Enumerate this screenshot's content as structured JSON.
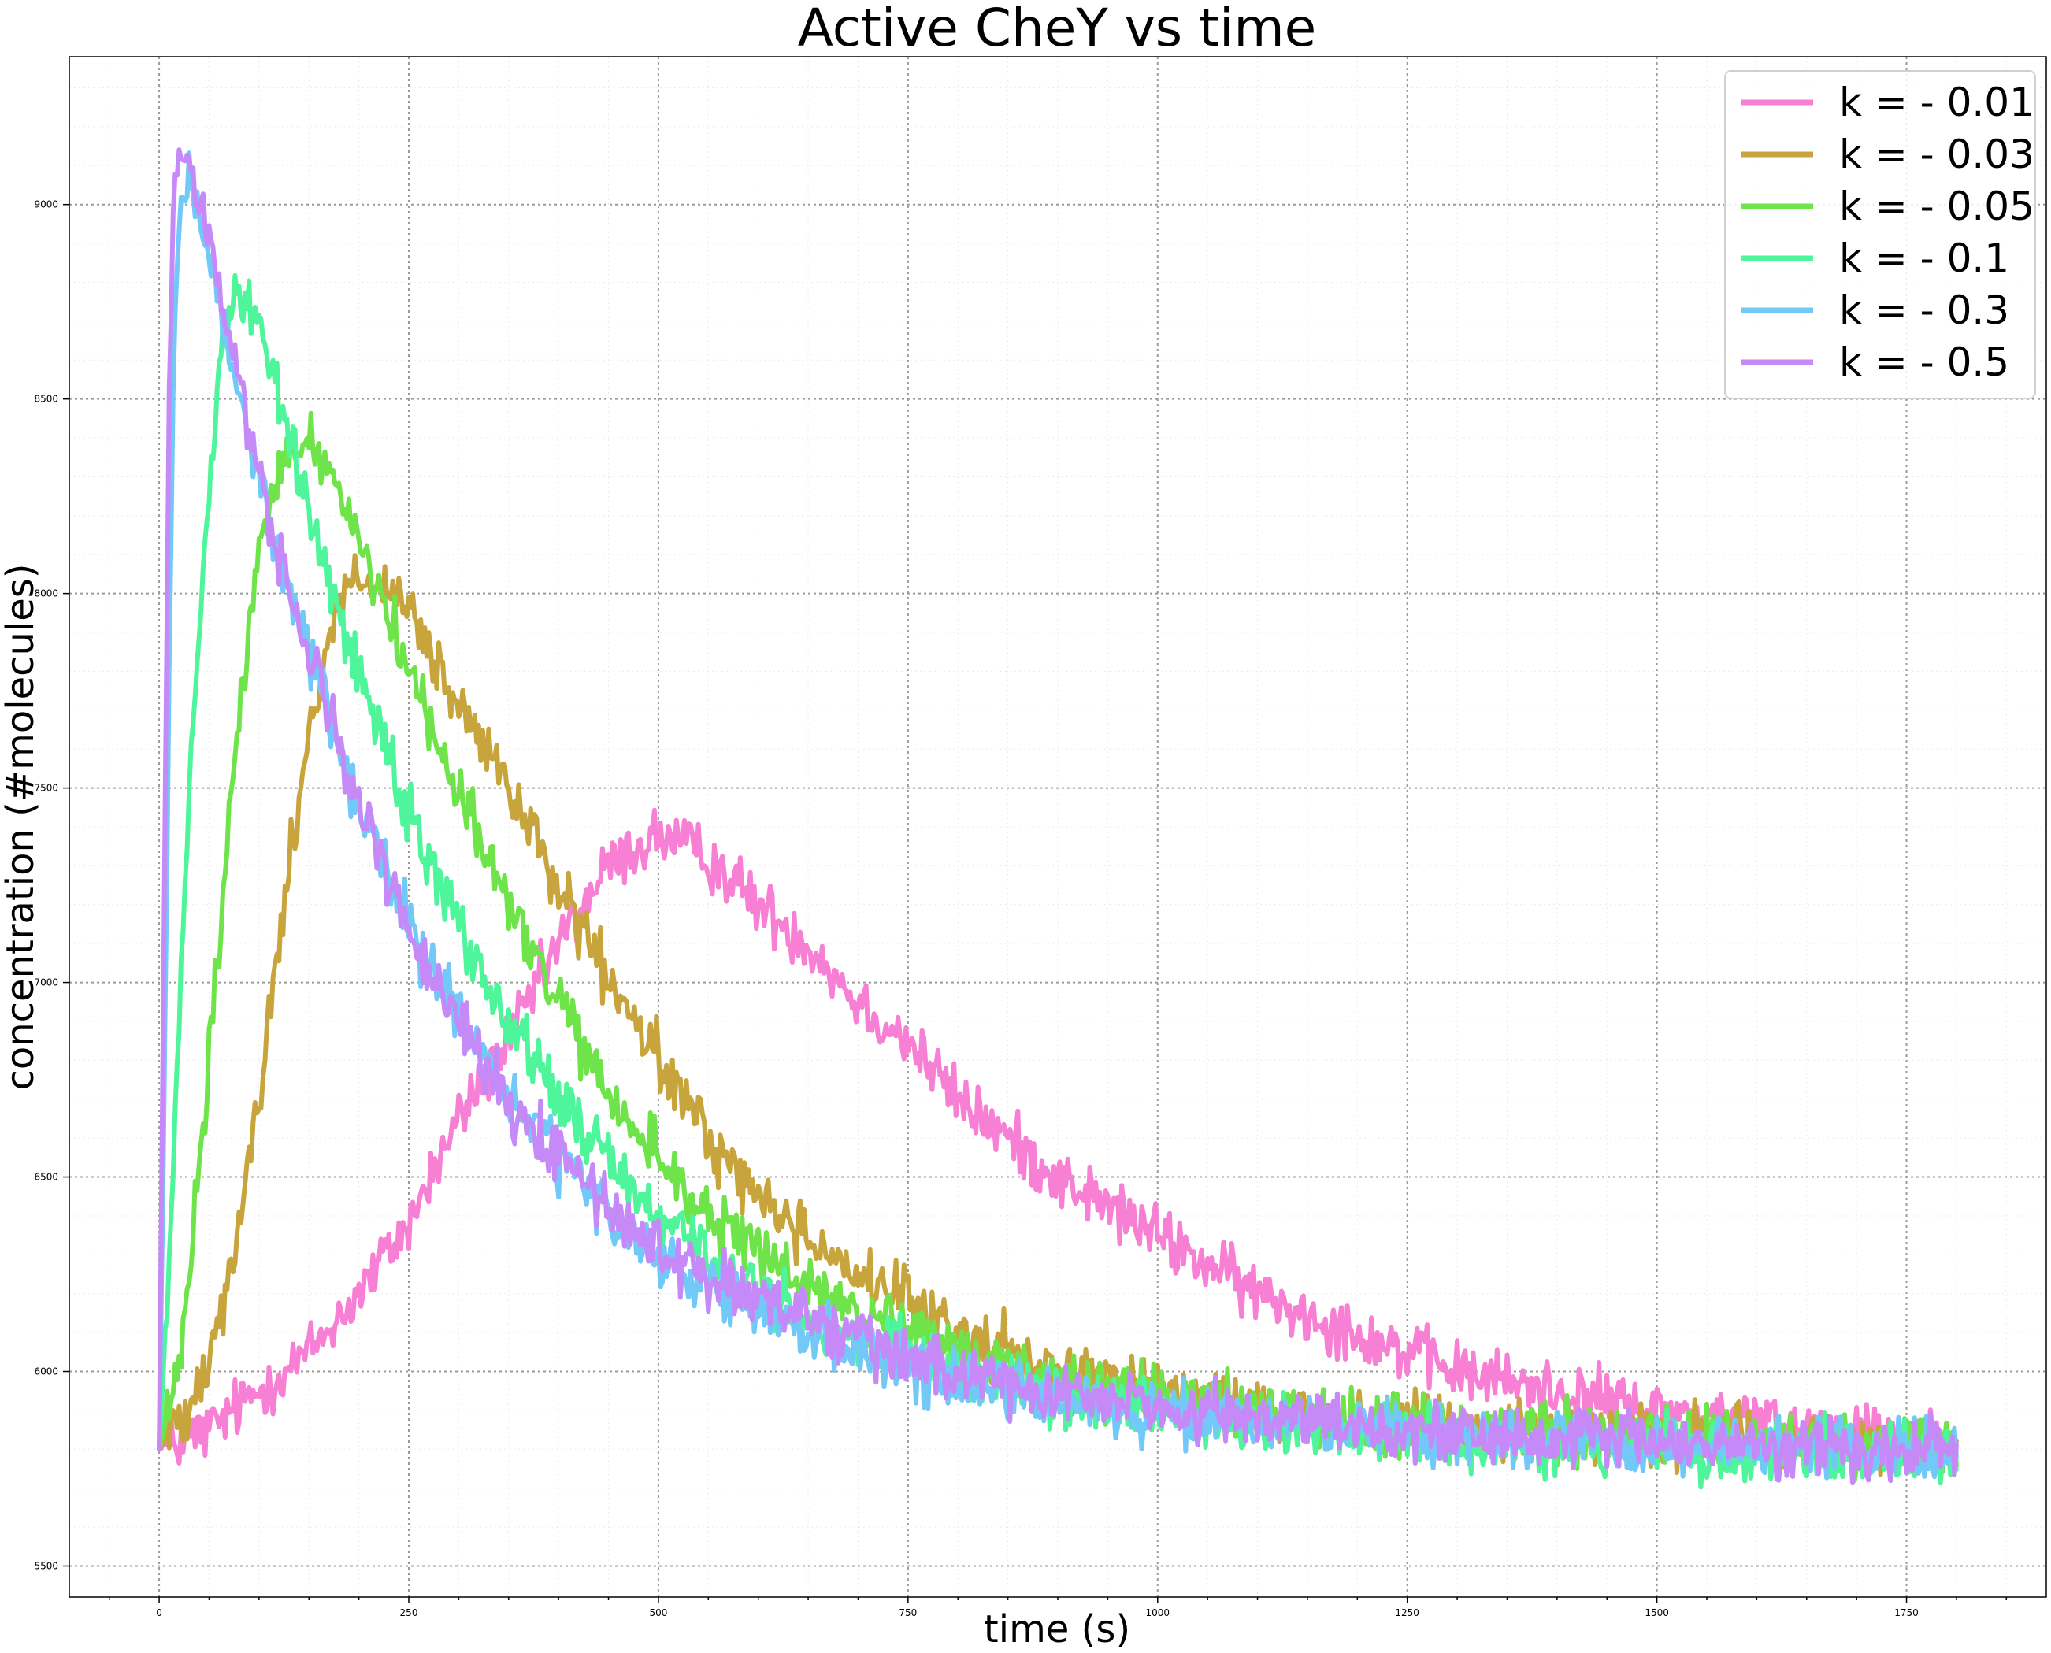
{
  "chart_data": {
    "type": "line",
    "title": "Active CheY vs time",
    "xlabel": "time (s)",
    "ylabel": "concentration (#molecules)",
    "xlim": [
      -90,
      1890
    ],
    "ylim": [
      5420,
      9380
    ],
    "xticks": [
      0,
      250,
      500,
      750,
      1000,
      1250,
      1500,
      1750
    ],
    "yticks": [
      5500,
      6000,
      6500,
      7000,
      7500,
      8000,
      8500,
      9000
    ],
    "grid": true,
    "legend": "top-right",
    "series": [
      {
        "name": "k = - 0.01",
        "color": "#f77fd4",
        "x": [
          0,
          50,
          100,
          150,
          200,
          250,
          300,
          350,
          400,
          450,
          500,
          550,
          600,
          650,
          700,
          750,
          800,
          900,
          1000,
          1100,
          1200,
          1300,
          1400,
          1500,
          1600,
          1700,
          1800
        ],
        "values": [
          5800,
          5850,
          5950,
          6050,
          6200,
          6380,
          6650,
          6850,
          7100,
          7300,
          7380,
          7320,
          7200,
          7100,
          6950,
          6850,
          6700,
          6500,
          6350,
          6200,
          6100,
          6000,
          5950,
          5900,
          5870,
          5850,
          5840
        ]
      },
      {
        "name": "k = - 0.03",
        "color": "#c7a43c",
        "x": [
          0,
          25,
          50,
          75,
          100,
          125,
          150,
          175,
          200,
          250,
          300,
          350,
          400,
          450,
          500,
          550,
          600,
          700,
          800,
          900,
          1000,
          1100,
          1200,
          1300,
          1400,
          1500,
          1600,
          1700,
          1800
        ],
        "values": [
          5800,
          5900,
          6050,
          6300,
          6700,
          7200,
          7650,
          7950,
          8050,
          7950,
          7700,
          7500,
          7250,
          7000,
          6800,
          6600,
          6450,
          6250,
          6100,
          6000,
          5950,
          5900,
          5880,
          5860,
          5850,
          5840,
          5830,
          5820,
          5820
        ]
      },
      {
        "name": "k = - 0.05",
        "color": "#6ee44a",
        "x": [
          0,
          20,
          40,
          60,
          80,
          100,
          125,
          150,
          175,
          200,
          250,
          300,
          350,
          400,
          450,
          500,
          550,
          600,
          700,
          800,
          900,
          1000,
          1100,
          1200,
          1300,
          1400,
          1500,
          1600,
          1700,
          1800
        ],
        "values": [
          5800,
          6000,
          6500,
          7100,
          7700,
          8100,
          8350,
          8400,
          8300,
          8150,
          7800,
          7500,
          7200,
          6950,
          6700,
          6550,
          6400,
          6300,
          6150,
          6050,
          5980,
          5930,
          5900,
          5870,
          5850,
          5840,
          5830,
          5820,
          5810,
          5810
        ]
      },
      {
        "name": "k = - 0.1",
        "color": "#4ef59a",
        "x": [
          0,
          10,
          20,
          30,
          45,
          60,
          75,
          90,
          105,
          125,
          150,
          200,
          250,
          300,
          350,
          400,
          450,
          500,
          550,
          600,
          700,
          800,
          900,
          1000,
          1100,
          1200,
          1300,
          1400,
          1500,
          1600,
          1700,
          1800
        ],
        "values": [
          5800,
          6300,
          6900,
          7500,
          8100,
          8600,
          8780,
          8750,
          8650,
          8450,
          8200,
          7800,
          7450,
          7150,
          6900,
          6700,
          6550,
          6400,
          6300,
          6200,
          6080,
          6000,
          5940,
          5900,
          5870,
          5850,
          5830,
          5810,
          5800,
          5790,
          5780,
          5780
        ]
      },
      {
        "name": "k = - 0.3",
        "color": "#72c9f8",
        "x": [
          0,
          5,
          10,
          15,
          20,
          30,
          40,
          60,
          80,
          100,
          125,
          150,
          175,
          200,
          250,
          300,
          350,
          400,
          450,
          500,
          550,
          600,
          700,
          800,
          900,
          1000,
          1100,
          1200,
          1300,
          1400,
          1500,
          1600,
          1700,
          1800
        ],
        "values": [
          5800,
          6700,
          7800,
          8600,
          8950,
          9050,
          8950,
          8750,
          8500,
          8300,
          8050,
          7850,
          7650,
          7450,
          7150,
          6900,
          6700,
          6550,
          6400,
          6300,
          6220,
          6150,
          6050,
          5980,
          5930,
          5890,
          5870,
          5850,
          5830,
          5820,
          5810,
          5800,
          5800,
          5790
        ]
      },
      {
        "name": "k = - 0.5",
        "color": "#c58af8",
        "x": [
          0,
          5,
          10,
          15,
          20,
          30,
          40,
          60,
          80,
          100,
          125,
          150,
          175,
          200,
          250,
          300,
          350,
          400,
          450,
          500,
          550,
          600,
          700,
          800,
          900,
          1000,
          1100,
          1200,
          1300,
          1400,
          1500,
          1600,
          1700,
          1800
        ],
        "values": [
          5800,
          7200,
          8500,
          9050,
          9150,
          9100,
          9000,
          8800,
          8550,
          8300,
          8050,
          7850,
          7650,
          7450,
          7150,
          6900,
          6700,
          6550,
          6420,
          6320,
          6250,
          6180,
          6080,
          6000,
          5950,
          5910,
          5880,
          5860,
          5840,
          5830,
          5820,
          5810,
          5800,
          5800
        ]
      }
    ]
  }
}
